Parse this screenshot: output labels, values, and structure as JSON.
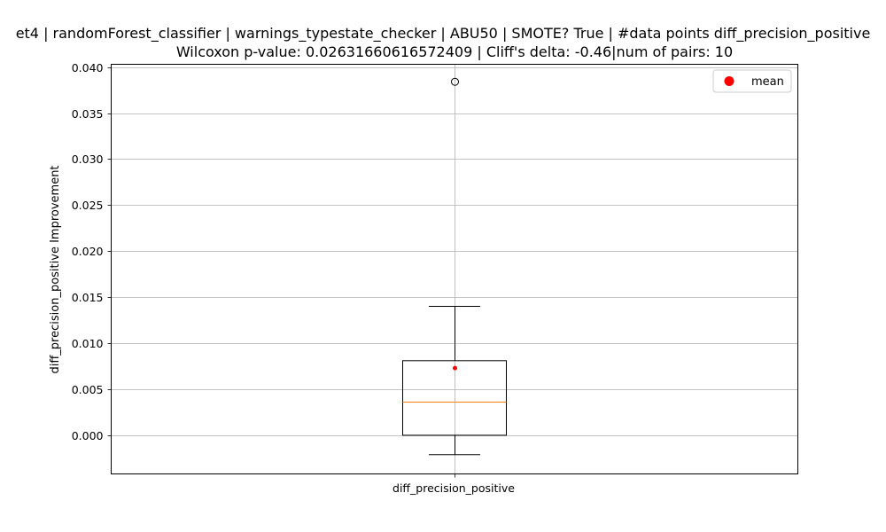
{
  "chart_data": {
    "type": "box",
    "title_lines": [
      "et4 | randomForest_classifier | warnings_typestate_checker | ABU50 | SMOTE? True | #data points diff_precision_positive",
      "Wilcoxon p-value: 0.02631660616572409 | Cliff's delta: -0.46|num of pairs: 10"
    ],
    "xlabel": "",
    "ylabel": "diff_precision_positive Improvement",
    "categories": [
      "diff_precision_positive"
    ],
    "ylim": [
      -0.0042,
      0.0403
    ],
    "yticks": [
      0.0,
      0.005,
      0.01,
      0.015,
      0.02,
      0.025,
      0.03,
      0.035,
      0.04
    ],
    "ytick_labels": [
      "0.000",
      "0.005",
      "0.010",
      "0.015",
      "0.020",
      "0.025",
      "0.030",
      "0.035",
      "0.040"
    ],
    "grid": true,
    "box": {
      "whisker_low": -0.0021,
      "q1": 0.0,
      "median": 0.0036,
      "q3": 0.0081,
      "whisker_high": 0.014,
      "mean": 0.0073,
      "outliers": [
        0.0384
      ]
    },
    "legend": {
      "position": "top-right",
      "entries": [
        "mean"
      ]
    },
    "colors": {
      "box": "#000000",
      "median": "#ff7f0e",
      "mean": "#ff0000",
      "grid": "#b0b0b0"
    }
  }
}
